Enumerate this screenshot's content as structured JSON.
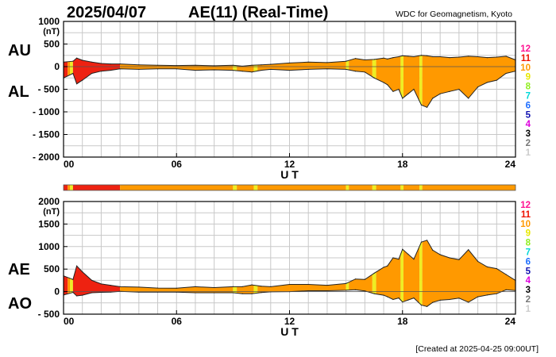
{
  "header": {
    "date": "2025/04/07",
    "title": "AE(11) (Real-Time)",
    "source": "WDC for Geomagnetism, Kyoto"
  },
  "footer": {
    "created": "[Created at 2025-04-25 09:00UT]"
  },
  "level_scale": {
    "labels": [
      "12",
      "11",
      "10",
      "9",
      "8",
      "7",
      "6",
      "5",
      "4",
      "3",
      "2",
      "1"
    ],
    "colors": [
      "#ff1493",
      "#ee1100",
      "#ff9900",
      "#e8e800",
      "#90ee20",
      "#00d8d8",
      "#1e6eff",
      "#1010b0",
      "#dd00dd",
      "#000000",
      "#777777",
      "#cccccc"
    ]
  },
  "station_colors": {
    "11": "#ee2211",
    "10": "#ff9900",
    "9": "#eeee22"
  },
  "chart_data": [
    {
      "type": "area",
      "name": "AU/AL",
      "series_labels": [
        "AU",
        "AL"
      ],
      "unit": "(nT)",
      "xlabel": "U T",
      "xlim": [
        0,
        24
      ],
      "xticks": [
        0,
        6,
        12,
        18,
        24
      ],
      "xtick_labels": [
        "00",
        "06",
        "12",
        "18",
        "24"
      ],
      "ylim": [
        -2000,
        1000
      ],
      "yticks": [
        1000,
        500,
        0,
        -500,
        -1000,
        -1500,
        -2000
      ],
      "ytick_labels": [
        "1000",
        "500",
        "0",
        "- 500",
        "- 1000",
        "- 1500",
        "- 2000"
      ],
      "grid": true,
      "x": [
        0,
        0.5,
        0.7,
        1,
        1.5,
        2,
        2.5,
        3,
        4,
        5,
        6,
        7,
        8,
        9,
        9.5,
        10,
        10.5,
        11,
        12,
        13,
        14,
        15,
        15.5,
        16,
        16.5,
        17,
        17.2,
        17.5,
        17.8,
        18,
        18.3,
        18.6,
        19,
        19.3,
        19.6,
        20,
        20.5,
        21,
        21.5,
        22,
        22.5,
        23,
        23.5,
        24
      ],
      "au": [
        100,
        120,
        190,
        140,
        100,
        70,
        60,
        60,
        40,
        30,
        25,
        30,
        20,
        30,
        10,
        30,
        40,
        50,
        80,
        100,
        90,
        120,
        180,
        150,
        160,
        190,
        170,
        200,
        220,
        240,
        230,
        220,
        250,
        240,
        220,
        220,
        200,
        210,
        230,
        220,
        200,
        210,
        230,
        150
      ],
      "al": [
        -250,
        -150,
        -380,
        -300,
        -150,
        -100,
        -80,
        -50,
        -60,
        -50,
        -50,
        -80,
        -70,
        -80,
        -100,
        -120,
        -80,
        -60,
        -80,
        -60,
        -50,
        -60,
        -100,
        -120,
        -250,
        -350,
        -400,
        -550,
        -500,
        -700,
        -600,
        -500,
        -850,
        -900,
        -700,
        -600,
        -550,
        -500,
        -700,
        -450,
        -350,
        -300,
        -150,
        -100
      ]
    },
    {
      "type": "area",
      "name": "AE/AO",
      "series_labels": [
        "AE",
        "AO"
      ],
      "unit": "(nT)",
      "xlabel": "U T",
      "xlim": [
        0,
        24
      ],
      "xticks": [
        0,
        6,
        12,
        18,
        24
      ],
      "xtick_labels": [
        "00",
        "06",
        "12",
        "18",
        "24"
      ],
      "ylim": [
        -500,
        2000
      ],
      "yticks": [
        2000,
        1500,
        1000,
        500,
        0,
        -500
      ],
      "ytick_labels": [
        "2000",
        "1500",
        "1000",
        "500",
        "0",
        "- 500"
      ],
      "grid": true,
      "x": [
        0,
        0.5,
        0.7,
        1,
        1.5,
        2,
        2.5,
        3,
        4,
        5,
        6,
        7,
        8,
        9,
        9.5,
        10,
        10.5,
        11,
        12,
        13,
        14,
        15,
        15.5,
        16,
        16.5,
        17,
        17.2,
        17.5,
        17.8,
        18,
        18.3,
        18.6,
        19,
        19.3,
        19.6,
        20,
        20.5,
        21,
        21.5,
        22,
        22.5,
        23,
        23.5,
        24
      ],
      "ae": [
        350,
        270,
        570,
        440,
        250,
        170,
        140,
        110,
        100,
        80,
        75,
        110,
        90,
        110,
        110,
        150,
        120,
        110,
        160,
        160,
        140,
        180,
        280,
        270,
        410,
        540,
        570,
        750,
        720,
        940,
        830,
        720,
        1100,
        1140,
        920,
        820,
        750,
        710,
        930,
        670,
        550,
        510,
        380,
        250
      ],
      "ao": [
        -75,
        -15,
        -95,
        -80,
        -25,
        -15,
        -10,
        5,
        -10,
        -10,
        -12,
        -25,
        -25,
        -25,
        -45,
        -45,
        -20,
        -5,
        0,
        20,
        20,
        30,
        40,
        15,
        -45,
        -80,
        -115,
        -175,
        -140,
        -230,
        -185,
        -140,
        -300,
        -330,
        -240,
        -190,
        -175,
        -145,
        -235,
        -115,
        -75,
        -45,
        40,
        25
      ]
    }
  ],
  "activity_bar": {
    "segments": [
      {
        "start": 0,
        "end": 0.22,
        "level": 11
      },
      {
        "start": 0.22,
        "end": 0.35,
        "level": 10
      },
      {
        "start": 0.35,
        "end": 0.5,
        "level": 9
      },
      {
        "start": 0.5,
        "end": 3,
        "level": 11
      },
      {
        "start": 3,
        "end": 9,
        "level": 10
      },
      {
        "start": 9,
        "end": 9.2,
        "level": 9
      },
      {
        "start": 9.2,
        "end": 10.1,
        "level": 10
      },
      {
        "start": 10.1,
        "end": 10.3,
        "level": 9
      },
      {
        "start": 10.3,
        "end": 15,
        "level": 10
      },
      {
        "start": 15,
        "end": 15.15,
        "level": 9
      },
      {
        "start": 15.15,
        "end": 16.4,
        "level": 10
      },
      {
        "start": 16.4,
        "end": 16.6,
        "level": 9
      },
      {
        "start": 16.6,
        "end": 17.9,
        "level": 10
      },
      {
        "start": 17.9,
        "end": 18.05,
        "level": 9
      },
      {
        "start": 18.05,
        "end": 18.9,
        "level": 10
      },
      {
        "start": 18.9,
        "end": 19.05,
        "level": 9
      },
      {
        "start": 19.05,
        "end": 24,
        "level": 10
      }
    ]
  }
}
